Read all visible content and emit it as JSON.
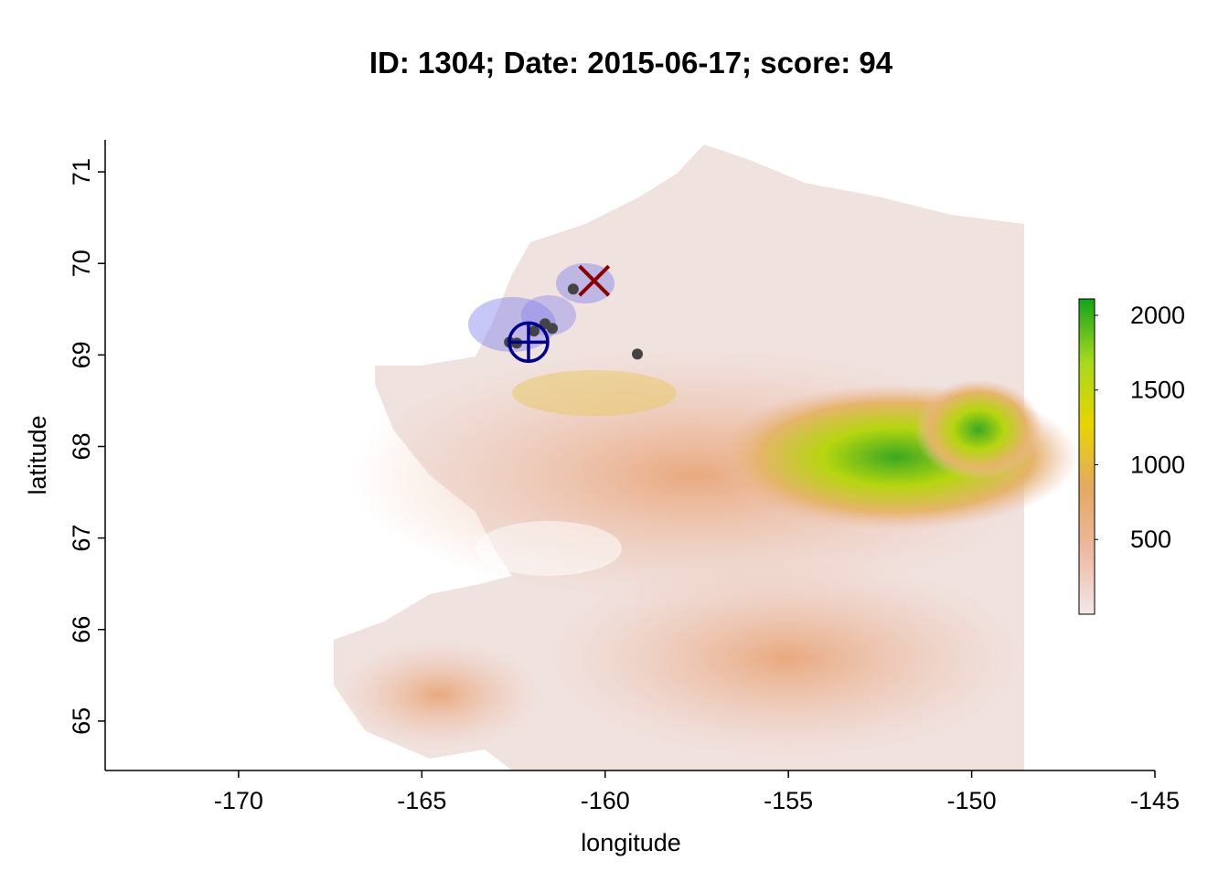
{
  "chart_data": {
    "type": "scatter",
    "title": "ID: 1304;  Date: 2015-06-17;  score: 94",
    "x_label": "longitude",
    "y_label": "latitude",
    "xlim": [
      -173.64,
      -145
    ],
    "ylim": [
      64.46,
      71.35
    ],
    "xticks": [
      -170,
      -165,
      -160,
      -155,
      -150,
      -145
    ],
    "yticks": [
      65,
      66,
      67,
      68,
      69,
      70,
      71
    ],
    "series": [
      {
        "color": "#444444",
        "marker": "dot",
        "x": [
          -160.87,
          -161.44,
          -161.64,
          -161.94,
          -162.61,
          -162.41,
          -159.12
        ],
        "values": [
          69.72,
          69.29,
          69.34,
          69.26,
          69.14,
          69.13,
          69.01
        ]
      },
      {
        "color": "#8b0000",
        "marker": "cross",
        "x": [
          -160.3
        ],
        "values": [
          69.81
        ]
      },
      {
        "color": "#00008b",
        "marker": "crosshair",
        "x": [
          -162.09
        ],
        "values": [
          69.14
        ]
      }
    ],
    "colorbar": {
      "zlim": [
        0,
        2110
      ],
      "ticks": [
        500,
        1000,
        1500,
        2000
      ],
      "colors": [
        "#f2e8e8",
        "#eeb9a2",
        "#e5a860",
        "#e8d400",
        "#a7d91c",
        "#13a31a"
      ]
    }
  }
}
